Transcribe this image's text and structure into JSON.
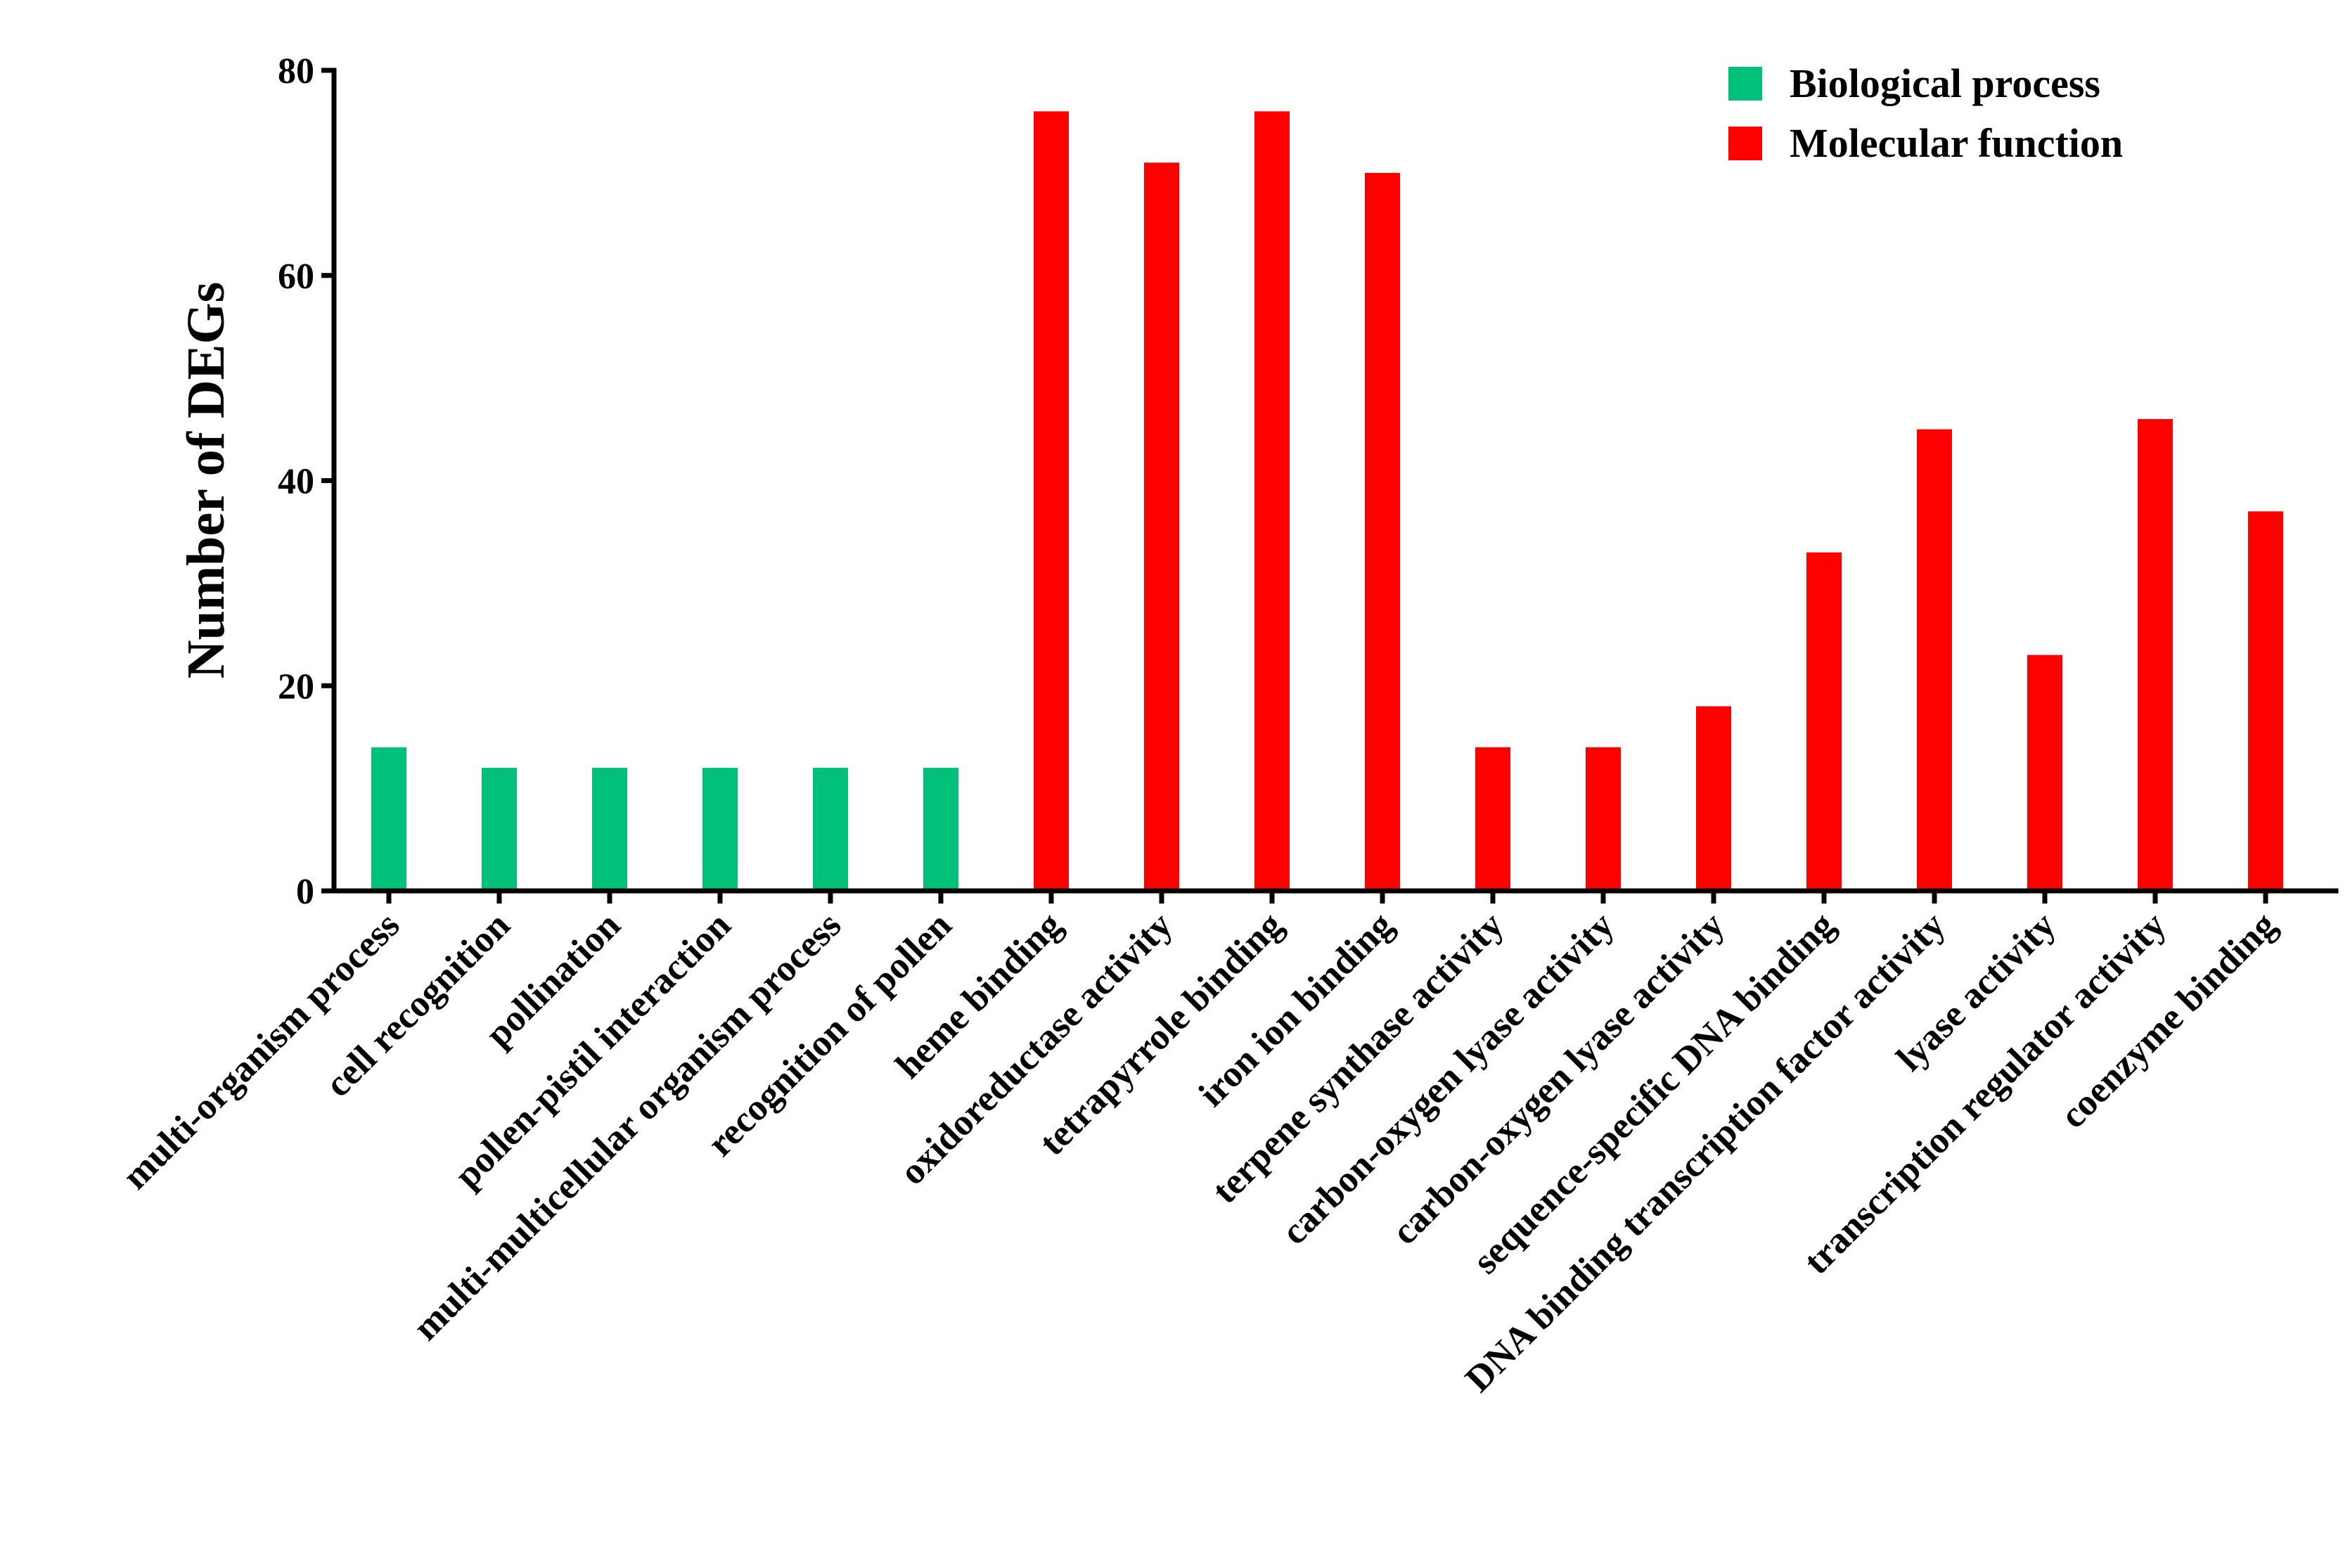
{
  "chart_data": {
    "type": "bar",
    "title": "",
    "xlabel": "",
    "ylabel": "Number of DEGs",
    "ylim": [
      0,
      80
    ],
    "yticks": [
      0,
      20,
      40,
      60,
      80
    ],
    "grid": false,
    "legend_position": "top-right",
    "categories": [
      "multi-organism process",
      "cell recognition",
      "pollination",
      "pollen-pistil interaction",
      "multi-multicellular organism process",
      "recognition of pollen",
      "heme binding",
      "oxidoreductase activity",
      "tetrapyrrole binding",
      "iron ion binding",
      "terpene synthase activity",
      "carbon-oxygen lyase activity",
      "carbon-oxygen lyase activity",
      "sequence-specific DNA binding",
      "DNA binding transcription factor activity",
      "lyase activity",
      "transcription regulator activity",
      "coenzyme binding"
    ],
    "values": [
      14,
      12,
      12,
      12,
      12,
      12,
      76,
      71,
      76,
      70,
      14,
      14,
      18,
      33,
      45,
      23,
      46,
      37
    ],
    "groups": [
      0,
      0,
      0,
      0,
      0,
      0,
      1,
      1,
      1,
      1,
      1,
      1,
      1,
      1,
      1,
      1,
      1,
      1
    ],
    "series": [
      {
        "name": "Biological process",
        "color": "#00c07a"
      },
      {
        "name": "Molecular function",
        "color": "#ff0000"
      }
    ]
  }
}
